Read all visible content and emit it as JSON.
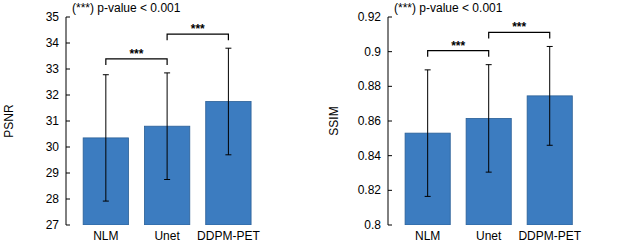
{
  "chart_data": [
    {
      "type": "bar",
      "y_label": "PSNR",
      "annotation": "(***) p-value < 0.001",
      "categories": [
        "NLM",
        "Unet",
        "DDPM-PET"
      ],
      "values": [
        30.35,
        30.8,
        31.75
      ],
      "errors": [
        2.43,
        2.05,
        2.05
      ],
      "color": "#3c7cc0",
      "ylim": [
        27,
        35
      ],
      "yticks": [
        27,
        28,
        29,
        30,
        31,
        32,
        33,
        34,
        35
      ],
      "significance": [
        {
          "pair": [
            "NLM",
            "Unet"
          ],
          "label": "***"
        },
        {
          "pair": [
            "Unet",
            "DDPM-PET"
          ],
          "label": "***"
        }
      ]
    },
    {
      "type": "bar",
      "y_label": "SSIM",
      "annotation": "(***) p-value < 0.001",
      "categories": [
        "NLM",
        "Unet",
        "DDPM-PET"
      ],
      "values": [
        0.853,
        0.8615,
        0.8745
      ],
      "errors": [
        0.0365,
        0.031,
        0.0285
      ],
      "color": "#3c7cc0",
      "ylim": [
        0.8,
        0.92
      ],
      "yticks": [
        0.8,
        0.82,
        0.84,
        0.86,
        0.88,
        0.9,
        0.92
      ],
      "significance": [
        {
          "pair": [
            "NLM",
            "Unet"
          ],
          "label": "***"
        },
        {
          "pair": [
            "Unet",
            "DDPM-PET"
          ],
          "label": "***"
        }
      ]
    }
  ]
}
